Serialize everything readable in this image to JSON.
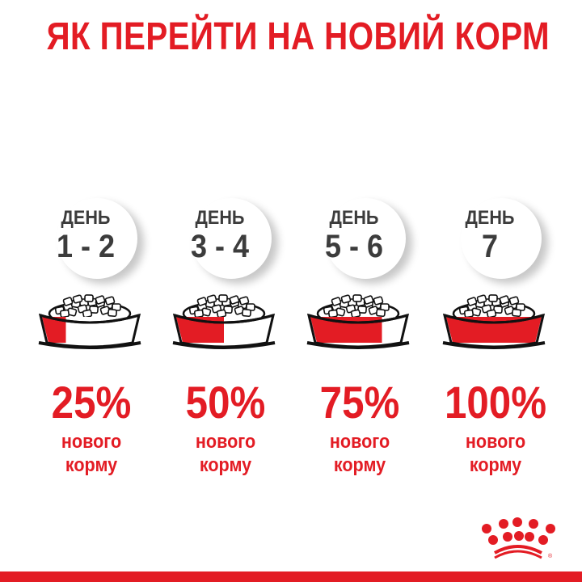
{
  "title": "ЯК ПЕРЕЙТИ НА НОВИЙ КОРМ",
  "brand_color": "#e31c24",
  "steps": [
    {
      "day_label": "ДЕНЬ",
      "range": "1 - 2",
      "percent_label": "25%",
      "new_food_fraction": 0.25,
      "line1": "нового",
      "line2": "корму"
    },
    {
      "day_label": "ДЕНЬ",
      "range": "3 - 4",
      "percent_label": "50%",
      "new_food_fraction": 0.5,
      "line1": "нового",
      "line2": "корму"
    },
    {
      "day_label": "ДЕНЬ",
      "range": "5 - 6",
      "percent_label": "75%",
      "new_food_fraction": 0.75,
      "line1": "нового",
      "line2": "корму"
    },
    {
      "day_label": "ДЕНЬ",
      "range": "7",
      "percent_label": "100%",
      "new_food_fraction": 1.0,
      "line1": "нового",
      "line2": "корму"
    }
  ],
  "logo": {
    "name": "royal-canin-crown-logo",
    "mark": "®"
  }
}
